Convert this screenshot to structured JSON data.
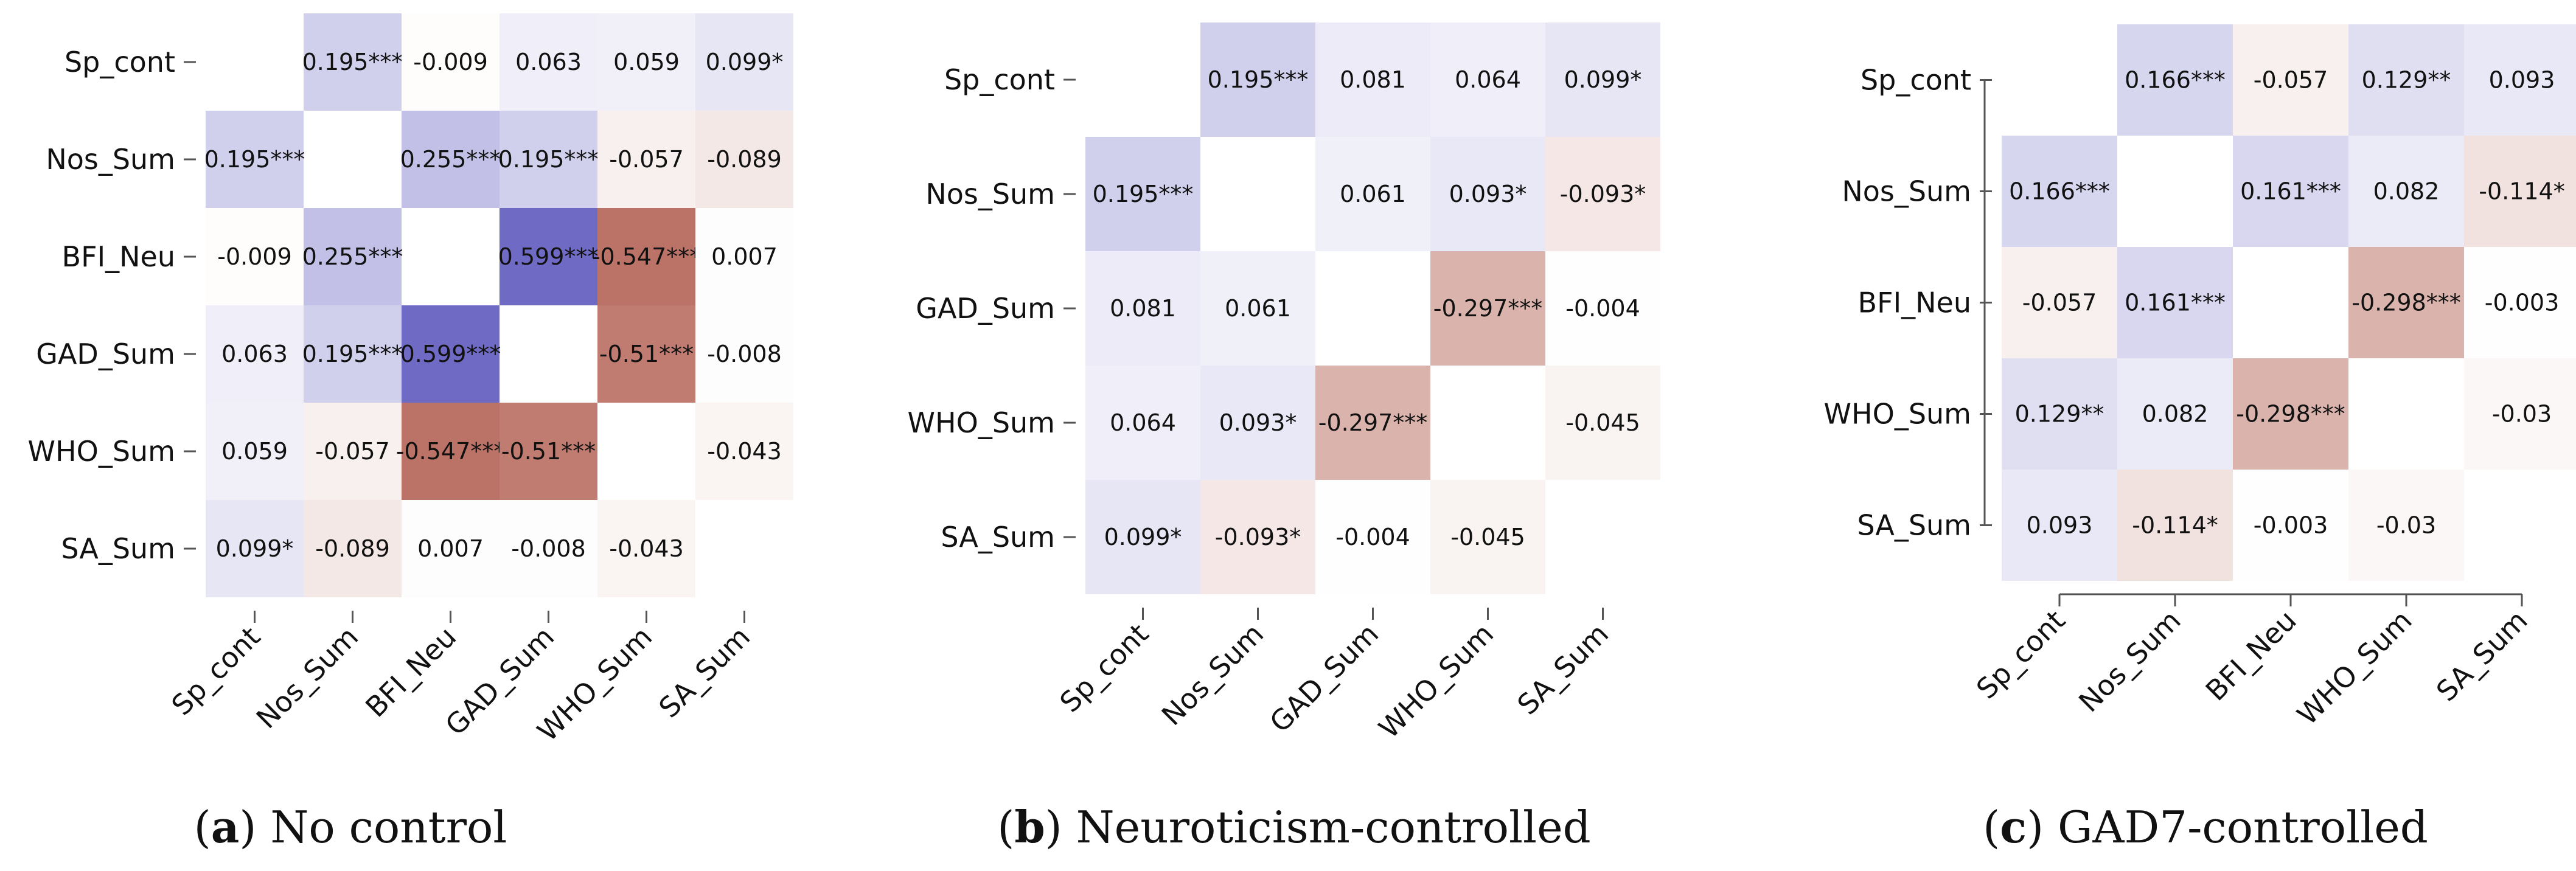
{
  "colors": {
    "positive": "#6f6ac4",
    "negative": "#b56558",
    "axis": "#555555",
    "text": "#111111"
  },
  "chart_data": [
    {
      "type": "heatmap",
      "caption_label": "a",
      "caption_text": "No control",
      "variables": [
        "Sp_cont",
        "Nos_Sum",
        "BFI_Neu",
        "GAD_Sum",
        "WHO_Sum",
        "SA_Sum"
      ],
      "cells": [
        [
          null,
          "0.195***",
          "-0.009",
          "0.063",
          "0.059",
          "0.099*"
        ],
        [
          "0.195***",
          null,
          "0.255***",
          "0.195***",
          "-0.057",
          "-0.089"
        ],
        [
          "-0.009",
          "0.255***",
          null,
          "0.599***",
          "-0.547***",
          "0.007"
        ],
        [
          "0.063",
          "0.195***",
          "0.599***",
          null,
          "-0.51***",
          "-0.008"
        ],
        [
          "0.059",
          "-0.057",
          "-0.547***",
          "-0.51***",
          null,
          "-0.043"
        ],
        [
          "0.099*",
          "-0.089",
          "0.007",
          "-0.008",
          "-0.043",
          null
        ]
      ],
      "color_range": [
        -0.6,
        0.6
      ]
    },
    {
      "type": "heatmap",
      "caption_label": "b",
      "caption_text": "Neuroticism-controlled",
      "variables": [
        "Sp_cont",
        "Nos_Sum",
        "GAD_Sum",
        "WHO_Sum",
        "SA_Sum"
      ],
      "cells": [
        [
          null,
          "0.195***",
          "0.081",
          "0.064",
          "0.099*"
        ],
        [
          "0.195***",
          null,
          "0.061",
          "0.093*",
          "-0.093*"
        ],
        [
          "0.081",
          "0.061",
          null,
          "-0.297***",
          "-0.004"
        ],
        [
          "0.064",
          "0.093*",
          "-0.297***",
          null,
          "-0.045"
        ],
        [
          "0.099*",
          "-0.093*",
          "-0.004",
          "-0.045",
          null
        ]
      ],
      "color_range": [
        -0.6,
        0.6
      ]
    },
    {
      "type": "heatmap",
      "caption_label": "c",
      "caption_text": "GAD7-controlled",
      "variables": [
        "Sp_cont",
        "Nos_Sum",
        "BFI_Neu",
        "WHO_Sum",
        "SA_Sum"
      ],
      "cells": [
        [
          null,
          "0.166***",
          "-0.057",
          "0.129**",
          "0.093"
        ],
        [
          "0.166***",
          null,
          "0.161***",
          "0.082",
          "-0.114*"
        ],
        [
          "-0.057",
          "0.161***",
          null,
          "-0.298***",
          "-0.003"
        ],
        [
          "0.129**",
          "0.082",
          "-0.298***",
          null,
          "-0.03"
        ],
        [
          "0.093",
          "-0.114*",
          "-0.003",
          "-0.03",
          null
        ]
      ],
      "color_range": [
        -0.6,
        0.6
      ]
    }
  ]
}
